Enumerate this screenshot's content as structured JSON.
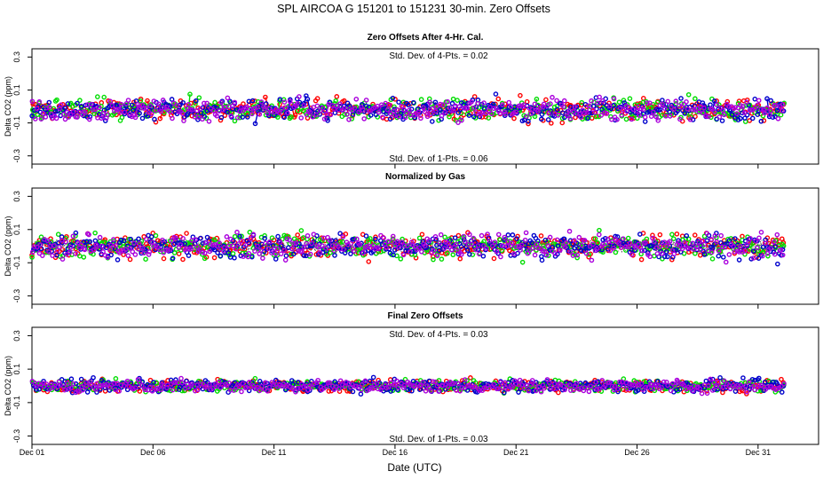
{
  "chart_data": {
    "type": "scatter",
    "title": "SPL   AIRCOA G   151201 to 151231   30-min. Zero Offsets",
    "xlabel": "Date (UTC)",
    "x_tick_labels": [
      "Dec 01",
      "Dec 06",
      "Dec 11",
      "Dec 16",
      "Dec 21",
      "Dec 26",
      "Dec 31"
    ],
    "xlim_days": [
      0.0,
      32.5
    ],
    "x_data_range_days": [
      0.0,
      31.1
    ],
    "series_colors": {
      "red": "#ff0000",
      "green": "#00dd00",
      "blue": "#0000cc",
      "purple": "#aa00dd",
      "gray": "#555555"
    },
    "panels": [
      {
        "title": "Zero Offsets After 4-Hr. Cal.",
        "ylabel": "Delta CO2 (ppm)",
        "ylim": [
          -0.35,
          0.35
        ],
        "y_tick_labels": [
          "-0.3",
          "-0.1",
          "0.1",
          "0.3"
        ],
        "annotation_top": "Std. Dev. of 4-Pts. =  0.02",
        "annotation_bottom": "Std. Dev. of 1-Pts. =  0.06",
        "mean": -0.02,
        "spread": 0.055,
        "series": [
          "red",
          "green",
          "blue",
          "purple"
        ]
      },
      {
        "title": "Normalized by Gas",
        "ylabel": "Delta CO2 (ppm)",
        "ylim": [
          -0.35,
          0.35
        ],
        "y_tick_labels": [
          "-0.3",
          "-0.1",
          "0.1",
          "0.3"
        ],
        "annotation_top": "",
        "annotation_bottom": "",
        "mean": 0.0,
        "spread": 0.06,
        "series": [
          "gray",
          "red",
          "green",
          "blue",
          "purple"
        ]
      },
      {
        "title": "Final Zero Offsets",
        "ylabel": "Delta CO2 (ppm)",
        "ylim": [
          -0.35,
          0.35
        ],
        "y_tick_labels": [
          "-0.3",
          "-0.1",
          "0.1",
          "0.3"
        ],
        "annotation_top": "Std. Dev. of 4-Pts. =  0.03",
        "annotation_bottom": "Std. Dev. of 1-Pts. =  0.03",
        "mean": 0.0,
        "spread": 0.03,
        "series": [
          "red",
          "green",
          "blue",
          "purple"
        ]
      }
    ]
  }
}
